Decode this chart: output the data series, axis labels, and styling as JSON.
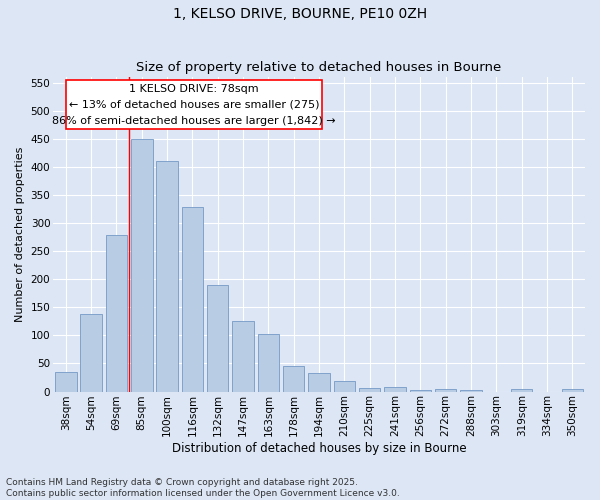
{
  "title": "1, KELSO DRIVE, BOURNE, PE10 0ZH",
  "subtitle": "Size of property relative to detached houses in Bourne",
  "xlabel": "Distribution of detached houses by size in Bourne",
  "ylabel": "Number of detached properties",
  "categories": [
    "38sqm",
    "54sqm",
    "69sqm",
    "85sqm",
    "100sqm",
    "116sqm",
    "132sqm",
    "147sqm",
    "163sqm",
    "178sqm",
    "194sqm",
    "210sqm",
    "225sqm",
    "241sqm",
    "256sqm",
    "272sqm",
    "288sqm",
    "303sqm",
    "319sqm",
    "334sqm",
    "350sqm"
  ],
  "values": [
    35,
    138,
    278,
    450,
    410,
    328,
    190,
    125,
    103,
    45,
    33,
    19,
    6,
    8,
    3,
    4,
    2,
    0,
    5,
    0,
    5
  ],
  "bar_color": "#b8cce4",
  "bar_edge_color": "#7399c6",
  "ylim": [
    0,
    560
  ],
  "yticks": [
    0,
    50,
    100,
    150,
    200,
    250,
    300,
    350,
    400,
    450,
    500,
    550
  ],
  "marker_label": "1 KELSO DRIVE: 78sqm",
  "annotation_line1": "← 13% of detached houses are smaller (275)",
  "annotation_line2": "86% of semi-detached houses are larger (1,842) →",
  "footer_line1": "Contains HM Land Registry data © Crown copyright and database right 2025.",
  "footer_line2": "Contains public sector information licensed under the Open Government Licence v3.0.",
  "background_color": "#dce6f5",
  "plot_background_color": "#dce6f5",
  "grid_color": "#ffffff",
  "title_fontsize": 10,
  "subtitle_fontsize": 9.5,
  "ylabel_fontsize": 8,
  "xlabel_fontsize": 8.5,
  "tick_fontsize": 7.5,
  "footer_fontsize": 6.5,
  "annotation_fontsize": 8,
  "red_line_x": 2.5
}
